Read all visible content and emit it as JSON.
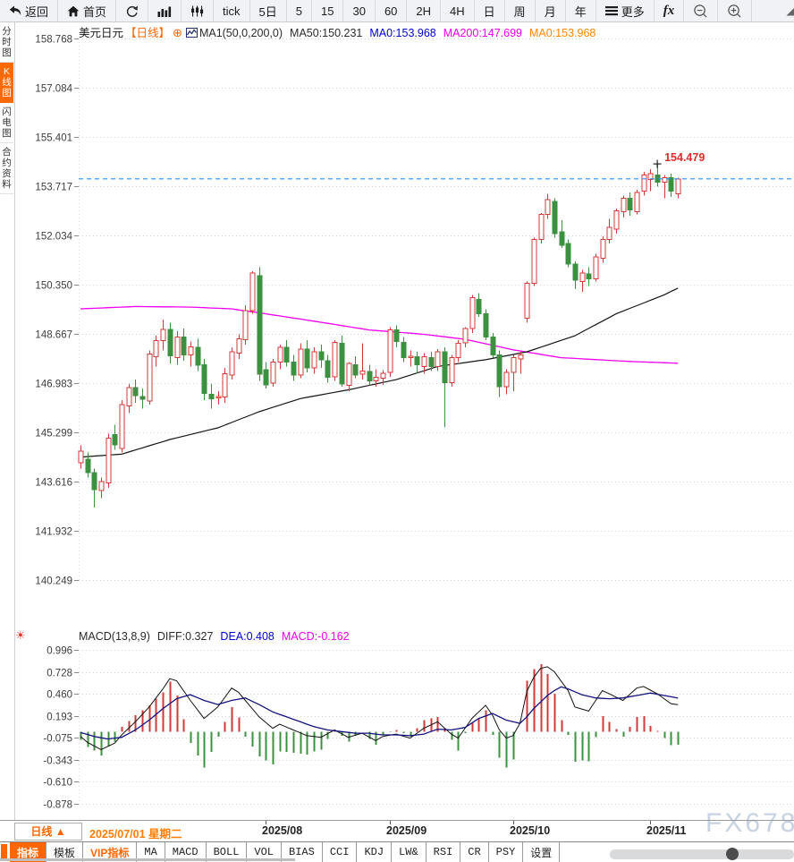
{
  "toolbar": {
    "items": [
      {
        "name": "back",
        "label": "返回",
        "icon": "back"
      },
      {
        "name": "home",
        "label": "首页",
        "icon": "home"
      },
      {
        "name": "refresh",
        "icon": "refresh"
      },
      {
        "name": "chart-style",
        "icon": "bars"
      },
      {
        "name": "indicator-style",
        "icon": "volume"
      },
      {
        "name": "period-tick",
        "label": "tick"
      },
      {
        "name": "period-5d",
        "label": "5日"
      },
      {
        "name": "period-5m",
        "label": "5"
      },
      {
        "name": "period-15m",
        "label": "15"
      },
      {
        "name": "period-30m",
        "label": "30"
      },
      {
        "name": "period-60m",
        "label": "60"
      },
      {
        "name": "period-2h",
        "label": "2H"
      },
      {
        "name": "period-4h",
        "label": "4H"
      },
      {
        "name": "period-day",
        "label": "日"
      },
      {
        "name": "period-week",
        "label": "周"
      },
      {
        "name": "period-month",
        "label": "月"
      },
      {
        "name": "period-year",
        "label": "年"
      },
      {
        "name": "more",
        "label": "更多",
        "icon": "menu"
      },
      {
        "name": "fx",
        "label": "fx",
        "fx": true
      },
      {
        "name": "zoom-out",
        "icon": "zoom-out"
      },
      {
        "name": "zoom-in",
        "icon": "zoom-in"
      },
      {
        "name": "corner",
        "icon": "corner",
        "corner": true
      }
    ]
  },
  "sidebar": {
    "tabs": [
      {
        "label": "分时图",
        "active": false
      },
      {
        "label": "K线图",
        "active": true
      },
      {
        "label": "闪电图",
        "active": false
      },
      {
        "label": "合约资料",
        "active": false
      }
    ]
  },
  "chart_header": {
    "symbol": "美元日元",
    "period_tag": "【日线】",
    "ma_settings": "MA1(50,0,200,0)",
    "ma50": "MA50:150.231",
    "ma0_blue": "MA0:153.968",
    "ma200": "MA200:147.699",
    "ma0_orange": "MA0:153.968"
  },
  "macd_header": {
    "title": "MACD(13,8,9)",
    "diff": "DIFF:0.327",
    "dea": "DEA:0.408",
    "macd": "MACD:-0.162"
  },
  "footer": {
    "period_label": "日线",
    "date_label": "2025/07/01 星期二",
    "watermark": "FX678"
  },
  "bottom_bar": {
    "tabs": [
      {
        "label": "指标",
        "active": true
      },
      {
        "label": "模板"
      },
      {
        "label": "VIP指标",
        "vip": true
      },
      {
        "label": "MA",
        "mono": true
      },
      {
        "label": "MACD",
        "mono": true
      },
      {
        "label": "BOLL",
        "mono": true
      },
      {
        "label": "VOL",
        "mono": true
      },
      {
        "label": "BIAS",
        "mono": true
      },
      {
        "label": "CCI",
        "mono": true
      },
      {
        "label": "KDJ",
        "mono": true
      },
      {
        "label": "LW&",
        "mono": true
      },
      {
        "label": "RSI",
        "mono": true
      },
      {
        "label": "CR",
        "mono": true
      },
      {
        "label": "PSY",
        "mono": true
      },
      {
        "label": "设置"
      }
    ]
  },
  "icons": {
    "expand_plus": "⊕",
    "macd_settings": "☀",
    "triangle_up": "▲"
  },
  "colors": {
    "accent_orange": "#ff6600",
    "up_red": "#d03a3a",
    "down_green": "#3c9140",
    "ma50_black": "#151515",
    "ma200_magenta": "#f000f0",
    "diff_black": "#111111",
    "dea_blue": "#12127d",
    "price_line_blue": "#1e90ff",
    "grid": "#ccd2de",
    "axis_text": "#3c3c3c",
    "high_label_red": "#e02b2b"
  },
  "chart_data": {
    "type": "candlestick",
    "symbol": "美元日元",
    "timeframe": "日线",
    "legend": [
      "MA50 (black)",
      "MA200 (magenta)",
      "current price dashed (blue)"
    ],
    "price_axis": {
      "ticks": [
        "158.768",
        "157.084",
        "155.401",
        "153.717",
        "152.034",
        "150.350",
        "148.667",
        "146.983",
        "145.299",
        "143.616",
        "141.932",
        "140.249"
      ]
    },
    "current_price": 153.968,
    "high_annotation": {
      "index": 84,
      "price": 154.479,
      "label": "154.479"
    },
    "x_labels": [
      {
        "label": "2025/08",
        "index": 27
      },
      {
        "label": "2025/09",
        "index": 45
      },
      {
        "label": "2025/10",
        "index": 63
      },
      {
        "label": "2025/11",
        "index": 83
      }
    ],
    "candles": [
      [
        144.25,
        144.85,
        144.05,
        144.66
      ],
      [
        144.38,
        144.6,
        143.75,
        143.92
      ],
      [
        143.92,
        144.05,
        142.73,
        143.34
      ],
      [
        143.31,
        143.75,
        143.05,
        143.61
      ],
      [
        143.56,
        145.25,
        143.4,
        145.09
      ],
      [
        145.22,
        145.55,
        144.7,
        144.87
      ],
      [
        144.74,
        146.4,
        144.6,
        146.25
      ],
      [
        146.2,
        146.95,
        145.95,
        146.82
      ],
      [
        146.82,
        147.1,
        146.3,
        146.55
      ],
      [
        146.52,
        146.8,
        146.1,
        146.43
      ],
      [
        146.37,
        148.1,
        146.25,
        147.98
      ],
      [
        147.88,
        148.6,
        147.55,
        148.43
      ],
      [
        148.43,
        149.15,
        148.1,
        148.82
      ],
      [
        148.82,
        149.05,
        147.65,
        147.92
      ],
      [
        147.85,
        148.75,
        147.6,
        148.55
      ],
      [
        148.55,
        148.85,
        147.75,
        147.95
      ],
      [
        147.95,
        148.4,
        147.55,
        148.22
      ],
      [
        148.2,
        148.5,
        147.4,
        147.6
      ],
      [
        147.6,
        147.8,
        146.4,
        146.62
      ],
      [
        146.6,
        146.95,
        146.1,
        146.45
      ],
      [
        146.48,
        146.7,
        146.25,
        146.52
      ],
      [
        146.5,
        147.5,
        146.3,
        147.3
      ],
      [
        147.25,
        148.2,
        147.1,
        148.05
      ],
      [
        148.0,
        148.65,
        147.8,
        148.5
      ],
      [
        148.46,
        149.65,
        148.3,
        149.46
      ],
      [
        149.46,
        150.8,
        149.35,
        150.74
      ],
      [
        150.65,
        150.95,
        147.05,
        147.29
      ],
      [
        147.44,
        147.7,
        146.8,
        146.92
      ],
      [
        146.98,
        147.8,
        146.85,
        147.7
      ],
      [
        147.7,
        148.3,
        147.45,
        148.2
      ],
      [
        148.2,
        148.45,
        147.55,
        147.7
      ],
      [
        147.7,
        147.95,
        147.05,
        147.25
      ],
      [
        147.25,
        148.35,
        147.15,
        148.15
      ],
      [
        148.15,
        148.45,
        147.35,
        147.5
      ],
      [
        147.5,
        148.2,
        147.3,
        148.05
      ],
      [
        148.05,
        148.3,
        147.5,
        147.78
      ],
      [
        147.75,
        147.95,
        147.0,
        147.18
      ],
      [
        147.2,
        148.45,
        147.05,
        148.38
      ],
      [
        148.35,
        148.6,
        146.85,
        146.95
      ],
      [
        146.9,
        147.7,
        146.7,
        147.65
      ],
      [
        147.6,
        147.9,
        147.15,
        147.25
      ],
      [
        147.28,
        148.35,
        147.1,
        147.4
      ],
      [
        147.38,
        147.6,
        146.9,
        147.05
      ],
      [
        147.05,
        147.45,
        146.85,
        147.18
      ],
      [
        147.15,
        147.42,
        146.92,
        147.32
      ],
      [
        147.35,
        148.9,
        147.2,
        148.8
      ],
      [
        148.8,
        148.95,
        148.2,
        148.4
      ],
      [
        148.38,
        148.55,
        147.7,
        147.85
      ],
      [
        147.85,
        148.1,
        147.55,
        147.9
      ],
      [
        147.88,
        148.05,
        147.3,
        147.6
      ],
      [
        147.55,
        148.0,
        147.3,
        147.88
      ],
      [
        147.85,
        148.05,
        147.4,
        147.55
      ],
      [
        147.55,
        148.15,
        147.4,
        148.05
      ],
      [
        148.05,
        148.2,
        145.48,
        147.0
      ],
      [
        147.0,
        147.95,
        146.85,
        147.85
      ],
      [
        147.85,
        148.45,
        147.7,
        148.35
      ],
      [
        148.35,
        148.9,
        148.2,
        148.85
      ],
      [
        148.85,
        150.0,
        148.7,
        149.9
      ],
      [
        149.85,
        150.05,
        149.25,
        149.35
      ],
      [
        149.35,
        149.5,
        148.45,
        148.55
      ],
      [
        148.55,
        148.7,
        147.85,
        147.95
      ],
      [
        147.95,
        148.1,
        146.5,
        146.85
      ],
      [
        146.85,
        147.45,
        146.6,
        147.35
      ],
      [
        147.35,
        147.95,
        146.7,
        147.85
      ],
      [
        147.8,
        148.05,
        147.3,
        147.95
      ],
      [
        149.2,
        150.45,
        149.05,
        150.4
      ],
      [
        150.4,
        151.95,
        150.3,
        151.9
      ],
      [
        151.9,
        152.8,
        151.75,
        152.75
      ],
      [
        152.75,
        153.45,
        152.6,
        153.25
      ],
      [
        153.2,
        153.3,
        151.95,
        152.1
      ],
      [
        152.15,
        152.55,
        151.6,
        151.7
      ],
      [
        151.75,
        151.9,
        150.95,
        151.05
      ],
      [
        151.05,
        151.15,
        150.2,
        150.5
      ],
      [
        150.45,
        150.85,
        150.1,
        150.75
      ],
      [
        150.72,
        150.95,
        150.3,
        150.55
      ],
      [
        150.55,
        151.4,
        150.45,
        151.3
      ],
      [
        151.25,
        152.0,
        151.1,
        151.9
      ],
      [
        151.9,
        152.6,
        151.75,
        152.3
      ],
      [
        152.25,
        152.95,
        152.1,
        152.88
      ],
      [
        152.85,
        153.4,
        152.65,
        153.3
      ],
      [
        153.3,
        153.5,
        152.7,
        152.9
      ],
      [
        152.85,
        153.6,
        152.75,
        153.5
      ],
      [
        153.55,
        154.2,
        153.4,
        154.1
      ],
      [
        153.95,
        154.3,
        153.55,
        154.15
      ],
      [
        154.1,
        154.479,
        153.7,
        153.85
      ],
      [
        153.85,
        154.1,
        153.3,
        154.0
      ],
      [
        154.0,
        154.15,
        153.35,
        153.55
      ],
      [
        153.45,
        154.0,
        153.3,
        153.968
      ]
    ],
    "ma50_anchors": [
      [
        0,
        144.45
      ],
      [
        6,
        144.55
      ],
      [
        13,
        145.05
      ],
      [
        20,
        145.45
      ],
      [
        26,
        146.0
      ],
      [
        32,
        146.45
      ],
      [
        39,
        146.75
      ],
      [
        46,
        147.1
      ],
      [
        52,
        147.55
      ],
      [
        59,
        147.78
      ],
      [
        65,
        148.05
      ],
      [
        72,
        148.6
      ],
      [
        78,
        149.35
      ],
      [
        85,
        150.0
      ],
      [
        87,
        150.23
      ]
    ],
    "ma200_anchors": [
      [
        0,
        149.52
      ],
      [
        8,
        149.6
      ],
      [
        16,
        149.58
      ],
      [
        22,
        149.52
      ],
      [
        27,
        149.35
      ],
      [
        34,
        149.1
      ],
      [
        42,
        148.8
      ],
      [
        50,
        148.65
      ],
      [
        56,
        148.48
      ],
      [
        63,
        148.12
      ],
      [
        70,
        147.85
      ],
      [
        80,
        147.72
      ],
      [
        87,
        147.66
      ]
    ],
    "macd": {
      "ticks": [
        "0.996",
        "0.728",
        "0.460",
        "0.193",
        "-0.075",
        "-0.343",
        "-0.610",
        "-0.878"
      ],
      "readout": {
        "diff": 0.327,
        "dea": 0.408,
        "macd": -0.162
      },
      "hist_formula": "2*(diff-dea)",
      "diff_anchors": [
        [
          0,
          -0.06
        ],
        [
          1,
          -0.13
        ],
        [
          3,
          -0.22
        ],
        [
          5,
          -0.14
        ],
        [
          6,
          -0.04
        ],
        [
          8,
          0.12
        ],
        [
          10,
          0.3
        ],
        [
          12,
          0.52
        ],
        [
          13,
          0.645
        ],
        [
          14,
          0.62
        ],
        [
          16,
          0.38
        ],
        [
          18,
          0.16
        ],
        [
          20,
          0.3
        ],
        [
          22,
          0.53
        ],
        [
          23,
          0.48
        ],
        [
          25,
          0.28
        ],
        [
          26,
          0.18
        ],
        [
          28,
          0.04
        ],
        [
          29,
          0.09
        ],
        [
          31,
          0.02
        ],
        [
          33,
          -0.05
        ],
        [
          35,
          -0.07
        ],
        [
          37,
          0.02
        ],
        [
          39,
          -0.07
        ],
        [
          41,
          -0.02
        ],
        [
          43,
          -0.11
        ],
        [
          44,
          -0.06
        ],
        [
          46,
          -0.03
        ],
        [
          48,
          -0.08
        ],
        [
          50,
          0.04
        ],
        [
          52,
          0.12
        ],
        [
          54,
          -0.03
        ],
        [
          55,
          -0.08
        ],
        [
          57,
          0.16
        ],
        [
          59,
          0.32
        ],
        [
          60,
          0.2
        ],
        [
          61,
          0.02
        ],
        [
          62,
          -0.08
        ],
        [
          63,
          -0.05
        ],
        [
          64,
          0.1
        ],
        [
          65,
          0.49
        ],
        [
          66,
          0.66
        ],
        [
          67,
          0.77
        ],
        [
          68,
          0.79
        ],
        [
          69,
          0.73
        ],
        [
          71,
          0.5
        ],
        [
          72,
          0.3
        ],
        [
          74,
          0.25
        ],
        [
          76,
          0.5
        ],
        [
          77,
          0.46
        ],
        [
          79,
          0.38
        ],
        [
          81,
          0.53
        ],
        [
          82,
          0.55
        ],
        [
          84,
          0.46
        ],
        [
          86,
          0.34
        ],
        [
          87,
          0.327
        ]
      ],
      "dea_anchors": [
        [
          0,
          -0.01
        ],
        [
          2,
          -0.06
        ],
        [
          4,
          -0.09
        ],
        [
          6,
          -0.07
        ],
        [
          8,
          0.02
        ],
        [
          10,
          0.14
        ],
        [
          12,
          0.28
        ],
        [
          14,
          0.4
        ],
        [
          16,
          0.45
        ],
        [
          18,
          0.38
        ],
        [
          20,
          0.33
        ],
        [
          22,
          0.38
        ],
        [
          24,
          0.41
        ],
        [
          26,
          0.33
        ],
        [
          28,
          0.24
        ],
        [
          30,
          0.18
        ],
        [
          32,
          0.12
        ],
        [
          34,
          0.06
        ],
        [
          36,
          0.02
        ],
        [
          38,
          0.0
        ],
        [
          40,
          -0.02
        ],
        [
          42,
          -0.02
        ],
        [
          44,
          -0.04
        ],
        [
          46,
          -0.04
        ],
        [
          48,
          -0.05
        ],
        [
          50,
          -0.03
        ],
        [
          52,
          0.03
        ],
        [
          54,
          0.02
        ],
        [
          56,
          0.05
        ],
        [
          58,
          0.16
        ],
        [
          60,
          0.22
        ],
        [
          62,
          0.14
        ],
        [
          64,
          0.1
        ],
        [
          65,
          0.18
        ],
        [
          66,
          0.28
        ],
        [
          67,
          0.36
        ],
        [
          68,
          0.44
        ],
        [
          69,
          0.5
        ],
        [
          70,
          0.545
        ],
        [
          71,
          0.52
        ],
        [
          73,
          0.45
        ],
        [
          75,
          0.41
        ],
        [
          77,
          0.4
        ],
        [
          79,
          0.41
        ],
        [
          81,
          0.44
        ],
        [
          83,
          0.47
        ],
        [
          85,
          0.44
        ],
        [
          87,
          0.408
        ]
      ]
    }
  }
}
